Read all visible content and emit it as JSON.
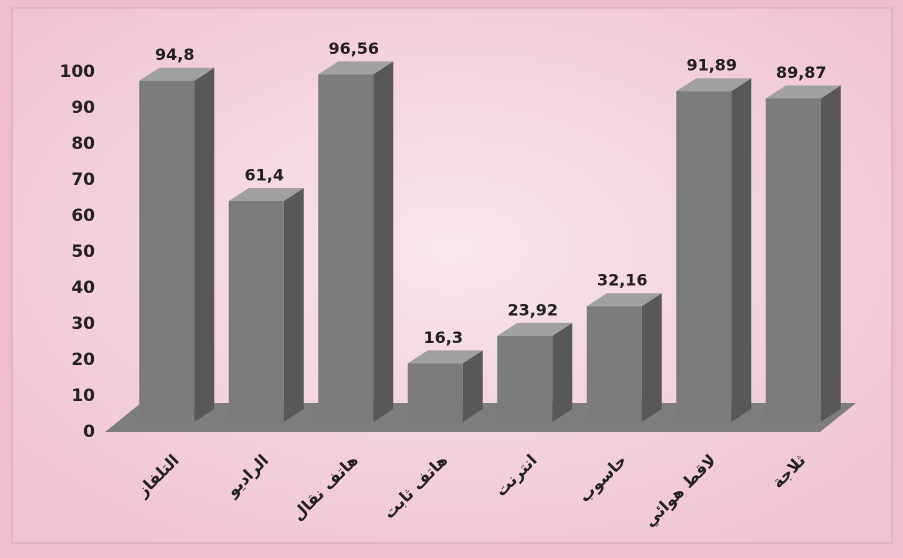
{
  "chart_data": {
    "type": "bar3d",
    "categories": [
      "التلفاز",
      "الراديو",
      "هاتف نقال",
      "هاتف ثابت",
      "انترنت",
      "حاسوب",
      "لاقط هوائي",
      "ثلاجة"
    ],
    "values": [
      94.8,
      61.4,
      96.56,
      16.3,
      23.92,
      32.16,
      91.89,
      89.87
    ],
    "value_labels": [
      "94,8",
      "61,4",
      "96,56",
      "16,3",
      "23,92",
      "32,16",
      "91,89",
      "89,87"
    ],
    "color": "#7b7b7b",
    "ylim": [
      0,
      100
    ],
    "yticks": [
      0,
      10,
      20,
      30,
      40,
      50,
      60,
      70,
      80,
      90,
      100
    ],
    "grid": false
  }
}
